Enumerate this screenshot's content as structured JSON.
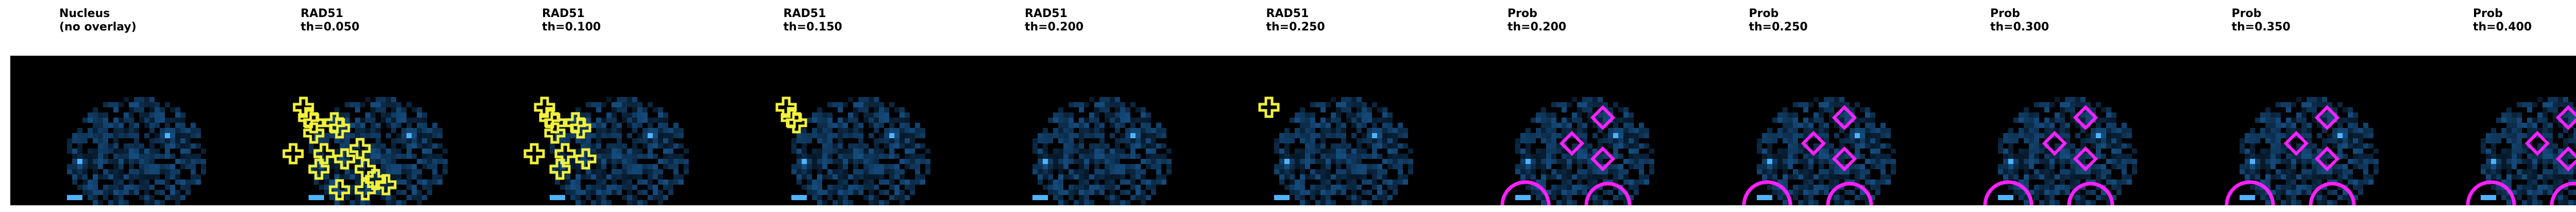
{
  "figure": {
    "panels": [
      {
        "name": "nucleus",
        "line1": "Nucleus",
        "line2": "(no overlay)",
        "overlay": "none"
      },
      {
        "name": "rad51-050",
        "line1": "RAD51",
        "line2": "th=0.050",
        "overlay": "rad51",
        "spots": 16
      },
      {
        "name": "rad51-100",
        "line1": "RAD51",
        "line2": "th=0.100",
        "overlay": "rad51",
        "spots": 10
      },
      {
        "name": "rad51-150",
        "line1": "RAD51",
        "line2": "th=0.150",
        "overlay": "rad51",
        "spots": 3
      },
      {
        "name": "rad51-200",
        "line1": "RAD51",
        "line2": "th=0.200",
        "overlay": "rad51",
        "spots": 0
      },
      {
        "name": "rad51-250",
        "line1": "RAD51",
        "line2": "th=0.250",
        "overlay": "rad51",
        "spots": 1
      },
      {
        "name": "prob-200",
        "line1": "Prob",
        "line2": "th=0.200",
        "overlay": "prob"
      },
      {
        "name": "prob-250",
        "line1": "Prob",
        "line2": "th=0.250",
        "overlay": "prob"
      },
      {
        "name": "prob-300",
        "line1": "Prob",
        "line2": "th=0.300",
        "overlay": "prob"
      },
      {
        "name": "prob-350",
        "line1": "Prob",
        "line2": "th=0.350",
        "overlay": "prob"
      },
      {
        "name": "prob-400",
        "line1": "Prob",
        "line2": "th=0.400",
        "overlay": "prob"
      }
    ]
  },
  "colors": {
    "background": "#000000",
    "nucleus": "#1a5f9e",
    "nucleus_bright": "#4fb3ff",
    "rad51_overlay": "#f2f23c",
    "prob_overlay": "#ff20ff"
  }
}
